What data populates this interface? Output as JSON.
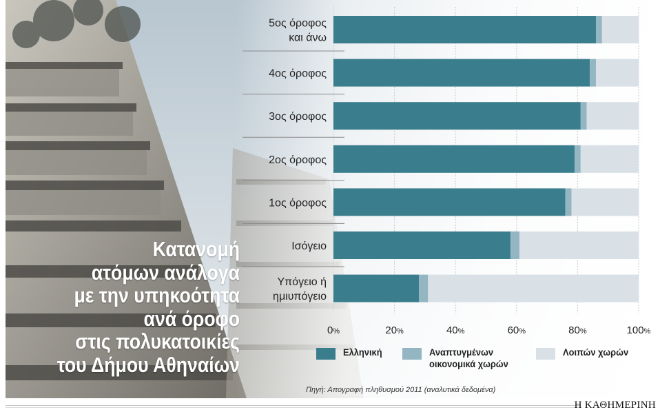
{
  "title_lines": [
    "Κατανομή",
    "ατόμων ανάλογα",
    "με την υπηκοότητα",
    "ανά όροφο",
    "στις πολυκατοικίες",
    "του Δήμου Αθηναίων"
  ],
  "source": "Πηγή: Απογραφή πληθυσμού 2011 (αναλυτικά δεδομένα)",
  "brand": "Η ΚΑΘΗΜΕΡΙΝΗ",
  "colors": {
    "greek": "#3a7e8d",
    "developing": "#93b6c2",
    "other": "#d9e1e6"
  },
  "legend": [
    {
      "label": "Ελληνική",
      "color": "#3a7e8d"
    },
    {
      "label": "Αναπτυγμένων\nοικονομικά χωρών",
      "color": "#93b6c2"
    },
    {
      "label": "Λοιπών χωρών",
      "color": "#d9e1e6"
    }
  ],
  "chart_data": {
    "type": "bar",
    "orientation": "horizontal",
    "stacked": true,
    "categories": [
      "5ος όροφος και άνω",
      "4ος όροφος",
      "3ος όροφος",
      "2ος όροφος",
      "1ος όροφος",
      "Ισόγειο",
      "Υπόγειο ή ημιυπόγειο"
    ],
    "category_lines": [
      [
        "5ος όροφος",
        "και άνω"
      ],
      [
        "4ος όροφος"
      ],
      [
        "3ος όροφος"
      ],
      [
        "2ος όροφος"
      ],
      [
        "1ος όροφος"
      ],
      [
        "Ισόγειο"
      ],
      [
        "Υπόγειο ή",
        "ημιυπόγειο"
      ]
    ],
    "series": [
      {
        "name": "Ελληνική",
        "values": [
          86,
          84,
          81,
          79,
          76,
          58,
          28
        ]
      },
      {
        "name": "Αναπτυγμένων οικονομικά χωρών",
        "values": [
          2,
          2,
          2,
          2,
          2,
          3,
          3
        ]
      },
      {
        "name": "Λοιπών χωρών",
        "values": [
          12,
          14,
          17,
          19,
          22,
          39,
          69
        ]
      }
    ],
    "xlim": [
      0,
      100
    ],
    "xticks": [
      "0",
      "20",
      "40",
      "60",
      "80",
      "100"
    ],
    "tick_suffix": "%",
    "grid": true
  }
}
